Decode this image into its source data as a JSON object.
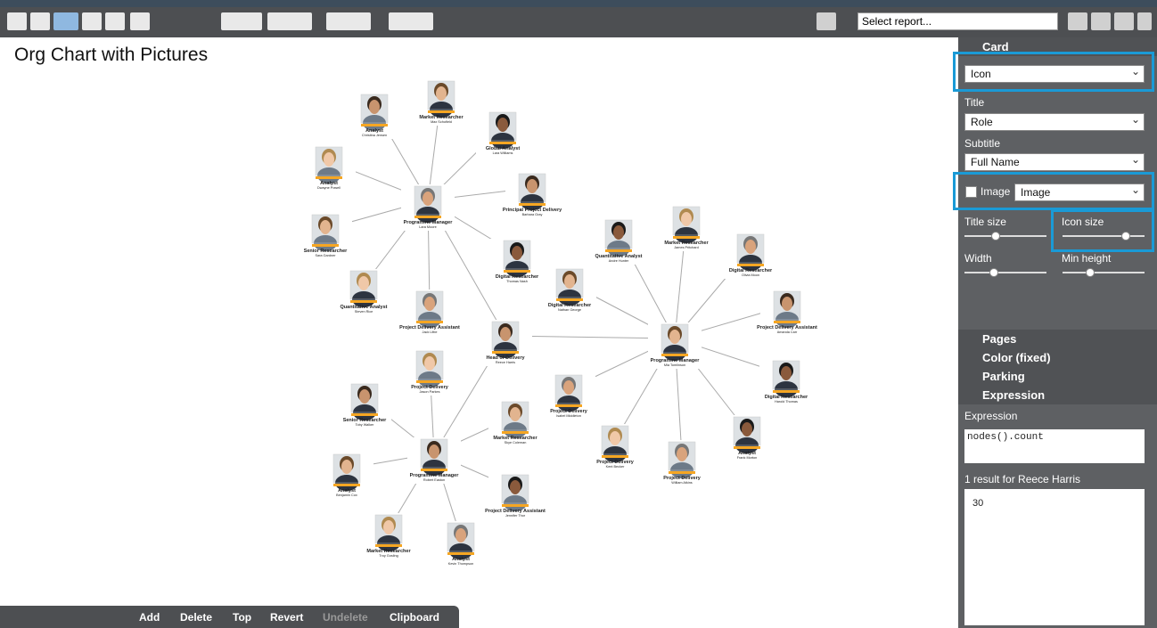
{
  "toolbar": {
    "report_select": "Select report..."
  },
  "title": "Org Chart with Pictures",
  "nodes": [
    {
      "role": "Analyst",
      "name": "Christina Jensen"
    },
    {
      "role": "Market Researcher",
      "name": "Max Schofield"
    },
    {
      "role": "Global Analyst",
      "name": "Lara Williams"
    },
    {
      "role": "Analyst",
      "name": "Dwayne Powell"
    },
    {
      "role": "Programme Manager",
      "name": "Lara Moore"
    },
    {
      "role": "Principal Project Delivery",
      "name": "Barbara Gray"
    },
    {
      "role": "Senior Researcher",
      "name": "Sara Gardner"
    },
    {
      "role": "Digital Researcher",
      "name": "Thomas Nash"
    },
    {
      "role": "Quantitative Analyst",
      "name": "Steven Rice"
    },
    {
      "role": "Project Delivery Assistant",
      "name": "Jack Little"
    },
    {
      "role": "Head of Delivery",
      "name": "Reece Harris"
    },
    {
      "role": "Digital Researcher",
      "name": "Nathan George"
    },
    {
      "role": "Quantitative Analyst",
      "name": "Andre Hunter"
    },
    {
      "role": "Market Researcher",
      "name": "James Pritchard"
    },
    {
      "role": "Digital Researcher",
      "name": "Olivia Moon"
    },
    {
      "role": "Project Delivery Assistant",
      "name": "Amanda Carr"
    },
    {
      "role": "Programme Manager",
      "name": "Mia Tomlinson"
    },
    {
      "role": "Digital Researcher",
      "name": "Harold Thomas"
    },
    {
      "role": "Project Delivery",
      "name": "Jason Parkes"
    },
    {
      "role": "Project Delivery",
      "name": "Isabel Middleton"
    },
    {
      "role": "Senior Researcher",
      "name": "Toby Walker"
    },
    {
      "role": "Market Researcher",
      "name": "Skye Coleman"
    },
    {
      "role": "Analyst",
      "name": "Frank Morton"
    },
    {
      "role": "Project Delivery",
      "name": "Kent Becker"
    },
    {
      "role": "Project Delivery",
      "name": "William Atkins"
    },
    {
      "role": "Programme Manager",
      "name": "Robert Easton"
    },
    {
      "role": "Analyst",
      "name": "Benjamin Cox"
    },
    {
      "role": "Project Delivery Assistant",
      "name": "Jennifer Thor"
    },
    {
      "role": "Market Researcher",
      "name": "Troy Gosling"
    },
    {
      "role": "Analyst",
      "name": "Kevin Thompson"
    }
  ],
  "panel": {
    "card": {
      "header": "Card",
      "style": "Icon",
      "title_label": "Title",
      "title_value": "Role",
      "subtitle_label": "Subtitle",
      "subtitle_value": "Full Name",
      "image_label": "Image",
      "image_value": "Image",
      "title_size": "Title size",
      "icon_size": "Icon size",
      "width": "Width",
      "min_height": "Min height"
    },
    "sections": [
      "Pages",
      "Color (fixed)",
      "Parking",
      "Expression"
    ],
    "expression": {
      "label": "Expression",
      "code": "nodes().count",
      "result_label": "1 result for Reece Harris",
      "result": 30
    }
  },
  "bottom_toolbar": [
    "Add",
    "Delete",
    "Top",
    "Revert",
    "Undelete",
    "Clipboard"
  ]
}
